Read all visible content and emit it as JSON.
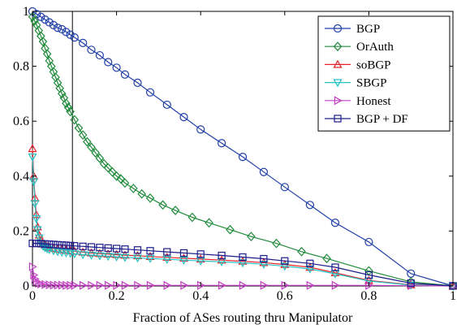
{
  "chart_data": {
    "type": "line",
    "title": "",
    "xlabel": "Fraction of ASes routing thru Manipulator",
    "ylabel": "",
    "xlim": [
      0,
      1
    ],
    "ylim": [
      0,
      1
    ],
    "xticks": [
      0,
      0.2,
      0.4,
      0.6,
      0.8,
      1
    ],
    "yticks": [
      0,
      0.2,
      0.4,
      0.6,
      0.8,
      1
    ],
    "xtick_labels": [
      "0",
      "0.2",
      "0.4",
      "0.6",
      "0.8",
      "1"
    ],
    "ytick_labels": [
      "0",
      "0.2",
      "0.4",
      "0.6",
      "0.8",
      "1"
    ],
    "grid": false,
    "legend_position": "top-right",
    "reference_line_x": 0.095,
    "series": [
      {
        "name": "BGP",
        "color": "#1f3fa8",
        "marker": "circle",
        "x": [
          0,
          0.01,
          0.02,
          0.03,
          0.04,
          0.05,
          0.06,
          0.07,
          0.08,
          0.09,
          0.1,
          0.12,
          0.14,
          0.16,
          0.18,
          0.2,
          0.22,
          0.25,
          0.28,
          0.32,
          0.36,
          0.4,
          0.45,
          0.5,
          0.55,
          0.6,
          0.66,
          0.72,
          0.8,
          0.9,
          1.0
        ],
        "y": [
          1.0,
          0.99,
          0.98,
          0.97,
          0.96,
          0.95,
          0.94,
          0.935,
          0.925,
          0.915,
          0.905,
          0.885,
          0.86,
          0.84,
          0.815,
          0.795,
          0.77,
          0.74,
          0.705,
          0.66,
          0.615,
          0.57,
          0.52,
          0.47,
          0.415,
          0.36,
          0.295,
          0.23,
          0.16,
          0.045,
          0.0
        ]
      },
      {
        "name": "OrAuth",
        "color": "#1f8a3a",
        "marker": "diamond",
        "x": [
          0,
          0.005,
          0.01,
          0.015,
          0.02,
          0.025,
          0.03,
          0.035,
          0.04,
          0.045,
          0.05,
          0.055,
          0.06,
          0.065,
          0.07,
          0.075,
          0.08,
          0.085,
          0.09,
          0.1,
          0.11,
          0.12,
          0.13,
          0.14,
          0.15,
          0.16,
          0.17,
          0.18,
          0.19,
          0.2,
          0.21,
          0.22,
          0.24,
          0.26,
          0.28,
          0.31,
          0.34,
          0.38,
          0.42,
          0.47,
          0.52,
          0.58,
          0.64,
          0.7,
          0.8,
          0.9,
          1.0
        ],
        "y": [
          0.98,
          0.965,
          0.95,
          0.93,
          0.91,
          0.89,
          0.865,
          0.845,
          0.82,
          0.8,
          0.78,
          0.76,
          0.74,
          0.72,
          0.7,
          0.685,
          0.665,
          0.65,
          0.635,
          0.605,
          0.575,
          0.55,
          0.525,
          0.505,
          0.485,
          0.465,
          0.445,
          0.43,
          0.415,
          0.4,
          0.39,
          0.375,
          0.355,
          0.335,
          0.32,
          0.295,
          0.275,
          0.25,
          0.23,
          0.205,
          0.18,
          0.155,
          0.125,
          0.1,
          0.055,
          0.015,
          0.0
        ]
      },
      {
        "name": "soBGP",
        "color": "#e8222a",
        "marker": "triangle-up",
        "x": [
          0,
          0.003,
          0.006,
          0.009,
          0.012,
          0.016,
          0.02,
          0.025,
          0.03,
          0.035,
          0.04,
          0.05,
          0.06,
          0.07,
          0.08,
          0.09,
          0.1,
          0.12,
          0.14,
          0.16,
          0.18,
          0.2,
          0.22,
          0.25,
          0.28,
          0.32,
          0.36,
          0.4,
          0.45,
          0.5,
          0.55,
          0.6,
          0.66,
          0.72,
          0.8,
          0.9,
          1.0
        ],
        "y": [
          0.5,
          0.4,
          0.32,
          0.26,
          0.215,
          0.185,
          0.165,
          0.155,
          0.148,
          0.143,
          0.14,
          0.137,
          0.134,
          0.132,
          0.13,
          0.128,
          0.126,
          0.123,
          0.12,
          0.118,
          0.116,
          0.114,
          0.112,
          0.11,
          0.107,
          0.104,
          0.101,
          0.098,
          0.094,
          0.09,
          0.085,
          0.078,
          0.068,
          0.048,
          0.02,
          0.004,
          0.0
        ]
      },
      {
        "name": "SBGP",
        "color": "#26c2c2",
        "marker": "triangle-down",
        "x": [
          0,
          0.003,
          0.006,
          0.009,
          0.012,
          0.016,
          0.02,
          0.025,
          0.03,
          0.035,
          0.04,
          0.05,
          0.06,
          0.07,
          0.08,
          0.09,
          0.1,
          0.12,
          0.14,
          0.16,
          0.18,
          0.2,
          0.22,
          0.25,
          0.28,
          0.32,
          0.36,
          0.4,
          0.45,
          0.5,
          0.55,
          0.6,
          0.66,
          0.72,
          0.8,
          0.9,
          1.0
        ],
        "y": [
          0.47,
          0.38,
          0.3,
          0.245,
          0.205,
          0.175,
          0.155,
          0.145,
          0.139,
          0.135,
          0.132,
          0.128,
          0.125,
          0.123,
          0.121,
          0.119,
          0.117,
          0.114,
          0.112,
          0.11,
          0.108,
          0.106,
          0.104,
          0.102,
          0.1,
          0.097,
          0.094,
          0.091,
          0.088,
          0.084,
          0.079,
          0.072,
          0.062,
          0.044,
          0.018,
          0.003,
          0.0
        ]
      },
      {
        "name": "Honest",
        "color": "#c23ec2",
        "marker": "triangle-right",
        "x": [
          0,
          0.003,
          0.006,
          0.01,
          0.015,
          0.02,
          0.03,
          0.04,
          0.05,
          0.06,
          0.07,
          0.08,
          0.09,
          0.1,
          0.12,
          0.14,
          0.16,
          0.18,
          0.2,
          0.22,
          0.25,
          0.28,
          0.32,
          0.36,
          0.4,
          0.45,
          0.5,
          0.55,
          0.6,
          0.66,
          0.72,
          0.8,
          0.9,
          1.0
        ],
        "y": [
          0.07,
          0.04,
          0.025,
          0.015,
          0.01,
          0.007,
          0.005,
          0.004,
          0.003,
          0.003,
          0.003,
          0.002,
          0.002,
          0.002,
          0.002,
          0.002,
          0.002,
          0.002,
          0.002,
          0.002,
          0.002,
          0.002,
          0.002,
          0.002,
          0.002,
          0.002,
          0.002,
          0.002,
          0.002,
          0.002,
          0.002,
          0.002,
          0.001,
          0.0
        ]
      },
      {
        "name": "BGP + DF",
        "color": "#1c1c8a",
        "marker": "square",
        "x": [
          0,
          0.01,
          0.02,
          0.03,
          0.04,
          0.05,
          0.06,
          0.07,
          0.08,
          0.09,
          0.1,
          0.12,
          0.14,
          0.16,
          0.18,
          0.2,
          0.22,
          0.25,
          0.28,
          0.32,
          0.36,
          0.4,
          0.45,
          0.5,
          0.55,
          0.6,
          0.66,
          0.72,
          0.8,
          0.9,
          1.0
        ],
        "y": [
          0.155,
          0.155,
          0.154,
          0.153,
          0.152,
          0.151,
          0.15,
          0.149,
          0.148,
          0.147,
          0.146,
          0.144,
          0.142,
          0.14,
          0.138,
          0.136,
          0.134,
          0.131,
          0.128,
          0.124,
          0.12,
          0.116,
          0.111,
          0.105,
          0.099,
          0.091,
          0.082,
          0.068,
          0.04,
          0.01,
          0.0
        ]
      }
    ]
  }
}
